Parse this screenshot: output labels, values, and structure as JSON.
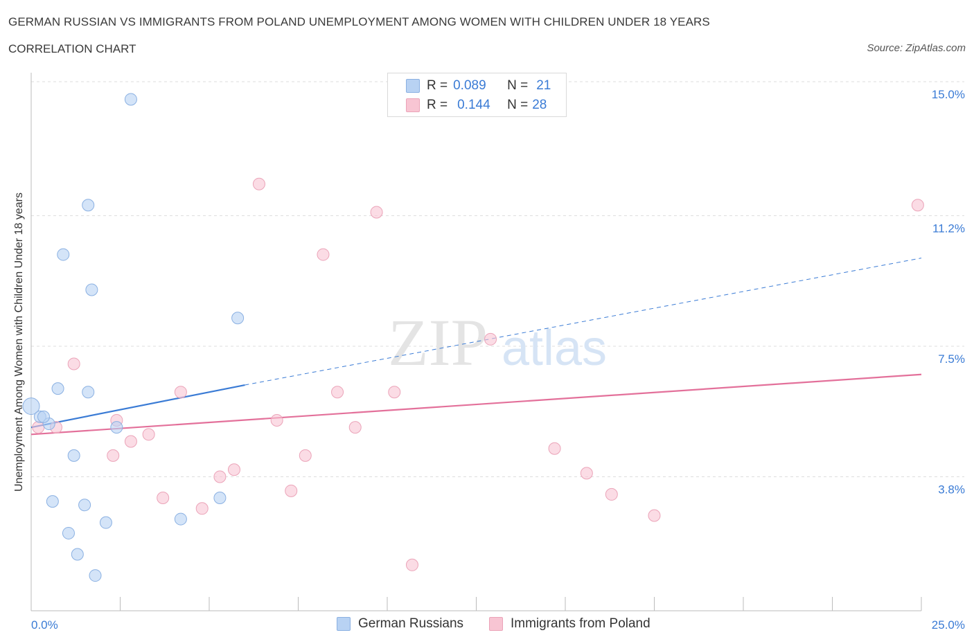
{
  "title": "GERMAN RUSSIAN VS IMMIGRANTS FROM POLAND UNEMPLOYMENT AMONG WOMEN WITH CHILDREN UNDER 18 YEARS",
  "subtitle": "CORRELATION CHART",
  "source": "Source: ZipAtlas.com",
  "watermark": {
    "zip": "ZIP",
    "atlas": "atlas"
  },
  "legend": {
    "r_label": "R =",
    "n_label": "N =",
    "rows": [
      {
        "r": "0.089",
        "n": "21"
      },
      {
        "r": "0.144",
        "n": "28"
      }
    ]
  },
  "colors": {
    "blue_fill": "#b8d2f3",
    "blue_stroke": "#8ab0e2",
    "blue_line": "#3a7bd5",
    "pink_fill": "#f8c5d3",
    "pink_stroke": "#eba3b8",
    "pink_line": "#e3709a",
    "tick_label": "#3a7bd5",
    "grid": "#dedede"
  },
  "chart_data": {
    "type": "scatter",
    "xlabel": "",
    "ylabel": "Unemployment Among Women with Children Under 18 years",
    "xlim": [
      0,
      25
    ],
    "ylim": [
      0,
      15
    ],
    "x_tick_labels": [
      "0.0%",
      "25.0%"
    ],
    "y_ticks": [
      3.8,
      7.5,
      11.2,
      15.0
    ],
    "y_tick_labels": [
      "3.8%",
      "7.5%",
      "11.2%",
      "15.0%"
    ],
    "grid": true,
    "legend_position": "top-center",
    "series": [
      {
        "name": "German Russians",
        "color": "#b8d2f3",
        "points": [
          [
            0.0,
            5.8
          ],
          [
            0.25,
            5.5
          ],
          [
            0.5,
            5.3
          ],
          [
            0.35,
            5.5
          ],
          [
            0.75,
            6.3
          ],
          [
            0.9,
            10.1
          ],
          [
            1.6,
            11.5
          ],
          [
            2.8,
            14.5
          ],
          [
            1.7,
            9.1
          ],
          [
            1.6,
            6.2
          ],
          [
            2.4,
            5.2
          ],
          [
            1.2,
            4.4
          ],
          [
            0.6,
            3.1
          ],
          [
            1.5,
            3.0
          ],
          [
            2.1,
            2.5
          ],
          [
            1.05,
            2.2
          ],
          [
            1.3,
            1.6
          ],
          [
            1.8,
            1.0
          ],
          [
            4.2,
            2.6
          ],
          [
            5.3,
            3.2
          ],
          [
            5.8,
            8.3
          ]
        ],
        "trend": {
          "x": [
            0,
            6
          ],
          "y": [
            5.2,
            6.4
          ]
        },
        "trend_extension": {
          "x": [
            6,
            25
          ],
          "y": [
            6.4,
            10.0
          ]
        }
      },
      {
        "name": "Immigrants from Poland",
        "color": "#f8c5d3",
        "points": [
          [
            0.2,
            5.2
          ],
          [
            0.7,
            5.2
          ],
          [
            1.2,
            7.0
          ],
          [
            2.4,
            5.4
          ],
          [
            2.3,
            4.4
          ],
          [
            2.8,
            4.8
          ],
          [
            3.3,
            5.0
          ],
          [
            3.7,
            3.2
          ],
          [
            4.2,
            6.2
          ],
          [
            4.8,
            2.9
          ],
          [
            5.3,
            3.8
          ],
          [
            5.7,
            4.0
          ],
          [
            6.4,
            12.1
          ],
          [
            6.9,
            5.4
          ],
          [
            7.3,
            3.4
          ],
          [
            7.7,
            4.4
          ],
          [
            8.2,
            10.1
          ],
          [
            8.6,
            6.2
          ],
          [
            9.1,
            5.2
          ],
          [
            9.7,
            11.3
          ],
          [
            10.2,
            6.2
          ],
          [
            10.7,
            1.3
          ],
          [
            12.9,
            7.7
          ],
          [
            14.7,
            4.6
          ],
          [
            15.6,
            3.9
          ],
          [
            16.3,
            3.3
          ],
          [
            17.5,
            2.7
          ],
          [
            24.9,
            11.5
          ]
        ],
        "trend": {
          "x": [
            0,
            25
          ],
          "y": [
            5.0,
            6.7
          ]
        }
      }
    ]
  }
}
